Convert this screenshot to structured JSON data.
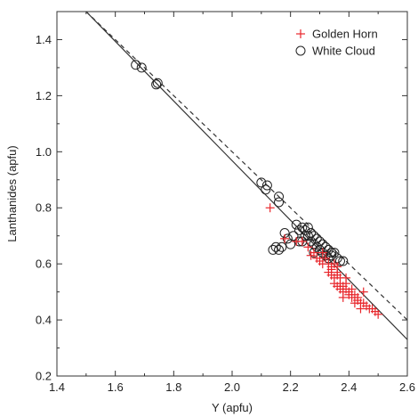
{
  "chart_data": {
    "type": "scatter",
    "xlabel": "Y (apfu)",
    "ylabel": "Lanthanides  (apfu)",
    "xlim": [
      1.4,
      2.6
    ],
    "ylim": [
      0.2,
      1.5
    ],
    "xticks": [
      "1.4",
      "1.6",
      "1.8",
      "2.0",
      "2.2",
      "2.4",
      "2.6"
    ],
    "yticks": [
      "0.2",
      "0.4",
      "0.6",
      "0.8",
      "1.0",
      "1.2",
      "1.4"
    ],
    "grid": false,
    "legend_position": "top-right",
    "series": [
      {
        "name": "Golden Horn",
        "marker": "plus",
        "color": "#e8262b",
        "points": [
          [
            2.13,
            0.8
          ],
          [
            2.18,
            0.69
          ],
          [
            2.22,
            0.68
          ],
          [
            2.24,
            0.68
          ],
          [
            2.26,
            0.66
          ],
          [
            2.27,
            0.63
          ],
          [
            2.28,
            0.64
          ],
          [
            2.29,
            0.62
          ],
          [
            2.3,
            0.61
          ],
          [
            2.31,
            0.6
          ],
          [
            2.32,
            0.62
          ],
          [
            2.33,
            0.6
          ],
          [
            2.34,
            0.59
          ],
          [
            2.35,
            0.6
          ],
          [
            2.36,
            0.59
          ],
          [
            2.33,
            0.57
          ],
          [
            2.34,
            0.56
          ],
          [
            2.35,
            0.55
          ],
          [
            2.36,
            0.56
          ],
          [
            2.37,
            0.55
          ],
          [
            2.35,
            0.53
          ],
          [
            2.36,
            0.52
          ],
          [
            2.37,
            0.53
          ],
          [
            2.38,
            0.52
          ],
          [
            2.39,
            0.53
          ],
          [
            2.37,
            0.51
          ],
          [
            2.38,
            0.5
          ],
          [
            2.39,
            0.51
          ],
          [
            2.4,
            0.5
          ],
          [
            2.41,
            0.51
          ],
          [
            2.38,
            0.48
          ],
          [
            2.4,
            0.49
          ],
          [
            2.41,
            0.48
          ],
          [
            2.42,
            0.49
          ],
          [
            2.43,
            0.48
          ],
          [
            2.42,
            0.46
          ],
          [
            2.43,
            0.47
          ],
          [
            2.44,
            0.46
          ],
          [
            2.45,
            0.46
          ],
          [
            2.44,
            0.44
          ],
          [
            2.46,
            0.45
          ],
          [
            2.47,
            0.44
          ],
          [
            2.48,
            0.44
          ],
          [
            2.49,
            0.43
          ],
          [
            2.5,
            0.42
          ],
          [
            2.45,
            0.5
          ],
          [
            2.39,
            0.55
          ],
          [
            2.34,
            0.58
          ],
          [
            2.31,
            0.64
          ],
          [
            2.36,
            0.57
          ]
        ]
      },
      {
        "name": "White Cloud",
        "marker": "circle",
        "color": "#222222",
        "points": [
          [
            1.67,
            1.31
          ],
          [
            1.69,
            1.3
          ],
          [
            1.74,
            1.24
          ],
          [
            1.745,
            1.245
          ],
          [
            2.1,
            0.89
          ],
          [
            2.12,
            0.88
          ],
          [
            2.115,
            0.865
          ],
          [
            2.16,
            0.84
          ],
          [
            2.16,
            0.82
          ],
          [
            2.15,
            0.66
          ],
          [
            2.14,
            0.65
          ],
          [
            2.16,
            0.65
          ],
          [
            2.17,
            0.66
          ],
          [
            2.18,
            0.71
          ],
          [
            2.19,
            0.69
          ],
          [
            2.2,
            0.67
          ],
          [
            2.21,
            0.7
          ],
          [
            2.22,
            0.74
          ],
          [
            2.23,
            0.72
          ],
          [
            2.23,
            0.68
          ],
          [
            2.24,
            0.73
          ],
          [
            2.25,
            0.72
          ],
          [
            2.25,
            0.7
          ],
          [
            2.26,
            0.73
          ],
          [
            2.26,
            0.7
          ],
          [
            2.27,
            0.71
          ],
          [
            2.27,
            0.68
          ],
          [
            2.28,
            0.7
          ],
          [
            2.28,
            0.67
          ],
          [
            2.29,
            0.69
          ],
          [
            2.29,
            0.66
          ],
          [
            2.3,
            0.68
          ],
          [
            2.3,
            0.65
          ],
          [
            2.31,
            0.67
          ],
          [
            2.31,
            0.64
          ],
          [
            2.32,
            0.66
          ],
          [
            2.32,
            0.63
          ],
          [
            2.33,
            0.65
          ],
          [
            2.33,
            0.62
          ],
          [
            2.34,
            0.64
          ],
          [
            2.34,
            0.63
          ],
          [
            2.35,
            0.64
          ],
          [
            2.36,
            0.62
          ],
          [
            2.37,
            0.61
          ],
          [
            2.38,
            0.61
          ],
          [
            2.24,
            0.68
          ],
          [
            2.28,
            0.64
          ]
        ]
      }
    ],
    "lines": [
      {
        "style": "solid",
        "color": "#333333",
        "from": [
          1.5,
          1.5
        ],
        "to": [
          2.6,
          0.33
        ]
      },
      {
        "style": "dashed",
        "color": "#333333",
        "from": [
          1.5,
          1.5
        ],
        "to": [
          2.6,
          0.4
        ]
      }
    ]
  }
}
